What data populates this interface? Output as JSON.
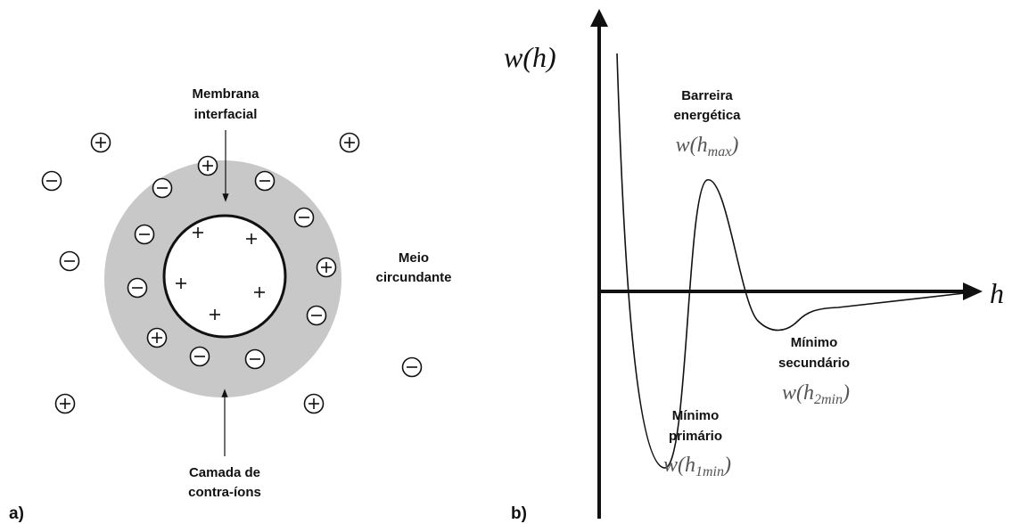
{
  "panel_a": {
    "tag": "a)",
    "membrane_label": [
      "Membrana",
      "interfacial"
    ],
    "medium_label": [
      "Meio",
      "circundante"
    ],
    "counterion_label": [
      "Camada de",
      "contra-íons"
    ]
  },
  "panel_b": {
    "tag": "b)",
    "y_axis_label": "w(h)",
    "x_axis_label": "h",
    "barrier": {
      "text": [
        "Barreira",
        "energética"
      ],
      "formula": {
        "base": "w(h",
        "sub": "max",
        "close": ")"
      }
    },
    "secondary_min": {
      "text": [
        "Mínimo",
        "secundário"
      ],
      "formula": {
        "base": "w(h",
        "sub": "2min",
        "close": ")"
      }
    },
    "primary_min": {
      "text": [
        "Mínimo",
        "primário"
      ],
      "formula": {
        "base": "w(h",
        "sub": "1min",
        "close": ")"
      }
    }
  }
}
